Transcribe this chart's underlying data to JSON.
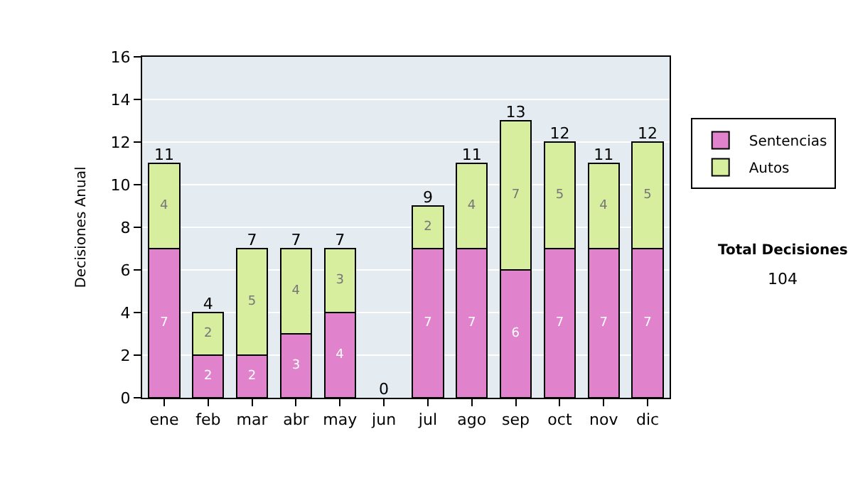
{
  "chart_data": {
    "type": "bar",
    "stacked": true,
    "ylabel": "Decisiones Anual",
    "categories": [
      "ene",
      "feb",
      "mar",
      "abr",
      "may",
      "jun",
      "jul",
      "ago",
      "sep",
      "oct",
      "nov",
      "dic"
    ],
    "series": [
      {
        "name": "Sentencias",
        "color": "#e083cc",
        "values": [
          7,
          2,
          2,
          3,
          4,
          0,
          7,
          7,
          6,
          7,
          7,
          7
        ],
        "value_labels": [
          "7",
          "2",
          "2",
          "3",
          "4",
          null,
          "7",
          "7",
          "6",
          "7",
          "7",
          "7"
        ]
      },
      {
        "name": "Autos",
        "color": "#d6ee9e",
        "values": [
          4,
          2,
          5,
          4,
          3,
          0,
          2,
          4,
          7,
          5,
          4,
          5
        ],
        "value_labels": [
          "4",
          "2",
          "5",
          "4",
          "3",
          null,
          "2",
          "4",
          "7",
          "5",
          "4",
          "5"
        ]
      }
    ],
    "totals": [
      "11",
      "4",
      "7",
      "7",
      "7",
      "0",
      "9",
      "11",
      "13",
      "12",
      "11",
      "12"
    ],
    "ylim": [
      0,
      16
    ],
    "yticks": [
      0,
      2,
      4,
      6,
      8,
      10,
      12,
      14,
      16
    ],
    "grid": "y",
    "legend": "right",
    "annotations": [
      "Total Decisiones",
      "104"
    ]
  }
}
